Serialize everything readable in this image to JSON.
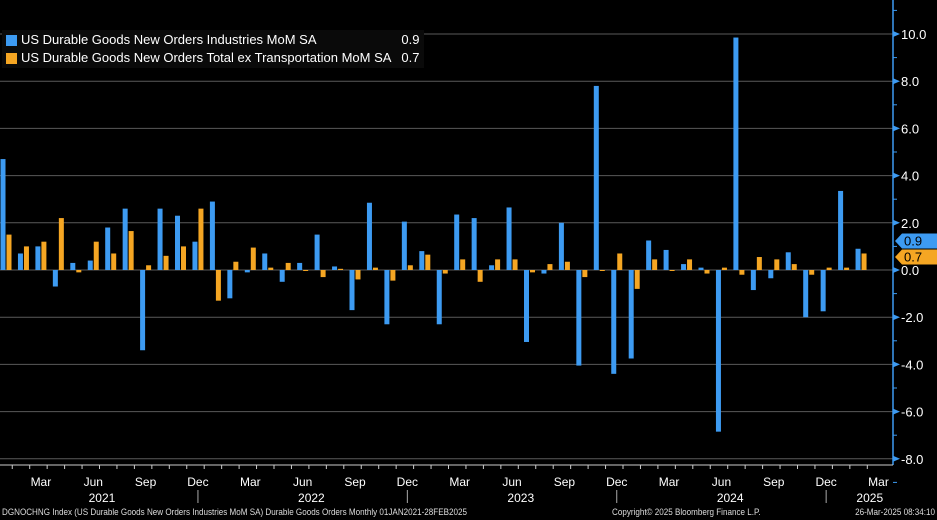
{
  "colors": {
    "series1": "#3d9bf2",
    "series2": "#f5a623",
    "grid": "#5a5a5a",
    "axis": "#3d9bf2"
  },
  "legend": [
    {
      "label": "US Durable Goods New Orders Industries MoM SA",
      "value": "0.9"
    },
    {
      "label": "US Durable Goods New Orders Total ex Transportation MoM SA",
      "value": "0.7"
    }
  ],
  "chart_data": {
    "type": "bar",
    "title": "",
    "xlabel": "",
    "ylabel": "",
    "ylim": [
      -8.3,
      11.4
    ],
    "grid": true,
    "legend_position": "top-left",
    "y_ticks": [
      "10.0",
      "8.0",
      "6.0",
      "4.0",
      "2.0",
      "0.0",
      "-2.0",
      "-4.0",
      "-6.0",
      "-8.0"
    ],
    "y_tick_values": [
      10,
      8,
      6,
      4,
      2,
      0,
      -2,
      -4,
      -6,
      -8
    ],
    "x_month_labels": [
      {
        "month_index": 2,
        "label": "Mar"
      },
      {
        "month_index": 5,
        "label": "Jun"
      },
      {
        "month_index": 8,
        "label": "Sep"
      },
      {
        "month_index": 11,
        "label": "Dec"
      },
      {
        "month_index": 14,
        "label": "Mar"
      },
      {
        "month_index": 17,
        "label": "Jun"
      },
      {
        "month_index": 20,
        "label": "Sep"
      },
      {
        "month_index": 23,
        "label": "Dec"
      },
      {
        "month_index": 26,
        "label": "Mar"
      },
      {
        "month_index": 29,
        "label": "Jun"
      },
      {
        "month_index": 32,
        "label": "Sep"
      },
      {
        "month_index": 35,
        "label": "Dec"
      },
      {
        "month_index": 38,
        "label": "Mar"
      },
      {
        "month_index": 41,
        "label": "Jun"
      },
      {
        "month_index": 44,
        "label": "Sep"
      },
      {
        "month_index": 47,
        "label": "Dec"
      },
      {
        "month_index": 50,
        "label": "Mar"
      }
    ],
    "x_year_labels": [
      {
        "month_index": 5.5,
        "label": "2021"
      },
      {
        "month_index": 17.5,
        "label": "2022"
      },
      {
        "month_index": 29.5,
        "label": "2023"
      },
      {
        "month_index": 41.5,
        "label": "2024"
      },
      {
        "month_index": 49.5,
        "label": "2025"
      }
    ],
    "categories_start": "Jan 2021",
    "categories_end": "Feb 2025",
    "series": [
      {
        "name": "US Durable Goods New Orders Industries MoM SA",
        "last": "0.9",
        "values": [
          4.7,
          0.7,
          1.0,
          -0.7,
          0.3,
          0.4,
          1.8,
          2.6,
          -3.4,
          2.6,
          2.3,
          1.2,
          2.9,
          -1.2,
          -0.1,
          0.7,
          -0.5,
          0.3,
          1.5,
          0.15,
          -1.7,
          2.85,
          -2.3,
          2.05,
          0.8,
          -2.3,
          2.35,
          2.2,
          0.2,
          2.65,
          -3.05,
          -0.15,
          2.0,
          -4.05,
          7.8,
          -4.4,
          -3.75,
          1.25,
          0.85,
          0.25,
          0.1,
          -6.85,
          9.85,
          -0.85,
          -0.35,
          0.75,
          -2.0,
          -1.75,
          3.35,
          0.9
        ]
      },
      {
        "name": "US Durable Goods New Orders Total ex Transportation MoM SA",
        "last": "0.7",
        "values": [
          1.5,
          1.0,
          1.2,
          2.2,
          -0.1,
          1.2,
          0.7,
          1.65,
          0.2,
          0.6,
          1.0,
          2.6,
          -1.3,
          0.35,
          0.95,
          0.1,
          0.3,
          0.0,
          -0.3,
          0.05,
          -0.4,
          0.1,
          -0.45,
          0.2,
          0.65,
          -0.15,
          0.45,
          -0.5,
          0.45,
          0.45,
          -0.1,
          0.25,
          0.35,
          -0.3,
          0.0,
          0.7,
          -0.8,
          0.45,
          0.0,
          0.45,
          -0.15,
          0.1,
          -0.2,
          0.55,
          0.45,
          0.25,
          -0.2,
          0.1,
          0.1,
          0.7
        ]
      }
    ]
  },
  "footer": {
    "description": "DGNOCHNG Index (US Durable Goods New Orders Industries MoM SA) Durable Goods Orders  Monthly 01JAN2021-28FEB2025",
    "copyright": "Copyright© 2025 Bloomberg Finance L.P.",
    "timestamp": "26-Mar-2025 08:34:10"
  }
}
